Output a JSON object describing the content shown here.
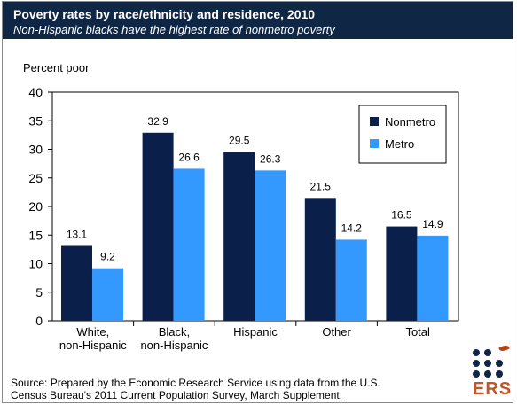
{
  "header": {
    "title": "Poverty rates by race/ethnicity and residence, 2010",
    "subtitle": "Non-Hispanic blacks have the highest rate of nonmetro poverty"
  },
  "chart_data": {
    "type": "bar",
    "ylabel": "Percent poor",
    "ylim": [
      0,
      40
    ],
    "yticks": [
      0,
      5,
      10,
      15,
      20,
      25,
      30,
      35,
      40
    ],
    "categories": [
      [
        "White,",
        "non-Hispanic"
      ],
      [
        "Black,",
        "non-Hispanic"
      ],
      [
        "Hispanic"
      ],
      [
        "Other"
      ],
      [
        "Total"
      ]
    ],
    "series": [
      {
        "name": "Nonmetro",
        "color": "#0b1f4b",
        "values": [
          13.1,
          32.9,
          29.5,
          21.5,
          16.5
        ],
        "labels": [
          "13.1",
          "32.9",
          "29.5",
          "21.5",
          "16.5"
        ]
      },
      {
        "name": "Metro",
        "color": "#3399ff",
        "values": [
          9.2,
          26.6,
          26.3,
          14.2,
          14.9
        ],
        "labels": [
          "9.2",
          "26.6",
          "26.3",
          "14.2",
          "14.9"
        ]
      }
    ],
    "legend_position": "top-right"
  },
  "source": {
    "line1": "Source: Prepared by the Economic Research Service using data from the U.S.",
    "line2": "Census Bureau's 2011 Current Population Survey, March Supplement."
  },
  "logo": {
    "text": "ERS",
    "icon": "ers-logo-icon"
  }
}
